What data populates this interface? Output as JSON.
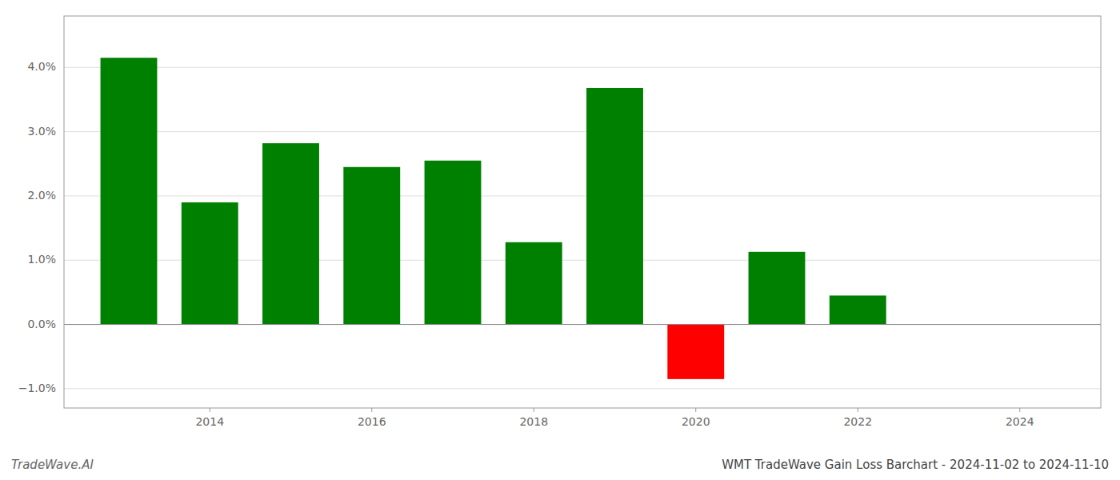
{
  "chart_data": {
    "type": "bar",
    "title": "WMT TradeWave Gain Loss Barchart - 2024-11-02 to 2024-11-10",
    "annotations": [
      "TradeWave.AI"
    ],
    "x": [
      2013,
      2014,
      2015,
      2016,
      2017,
      2018,
      2019,
      2020,
      2021,
      2022
    ],
    "values": [
      0.0415,
      0.019,
      0.0282,
      0.0245,
      0.0255,
      0.0128,
      0.0368,
      -0.0085,
      0.0113,
      0.0045
    ],
    "colors": [
      "#008000",
      "#008000",
      "#008000",
      "#008000",
      "#008000",
      "#008000",
      "#008000",
      "#ff0000",
      "#008000",
      "#008000"
    ],
    "xlim": [
      2012.2,
      2025.0
    ],
    "xticks": [
      2014,
      2016,
      2018,
      2020,
      2022,
      2024
    ],
    "ylim": [
      -0.013,
      0.048
    ],
    "yticks": [
      {
        "value": -0.01,
        "label": "−1.0%"
      },
      {
        "value": 0.0,
        "label": "0.0%"
      },
      {
        "value": 0.01,
        "label": "1.0%"
      },
      {
        "value": 0.02,
        "label": "2.0%"
      },
      {
        "value": 0.03,
        "label": "3.0%"
      },
      {
        "value": 0.04,
        "label": "4.0%"
      }
    ],
    "grid": true
  }
}
